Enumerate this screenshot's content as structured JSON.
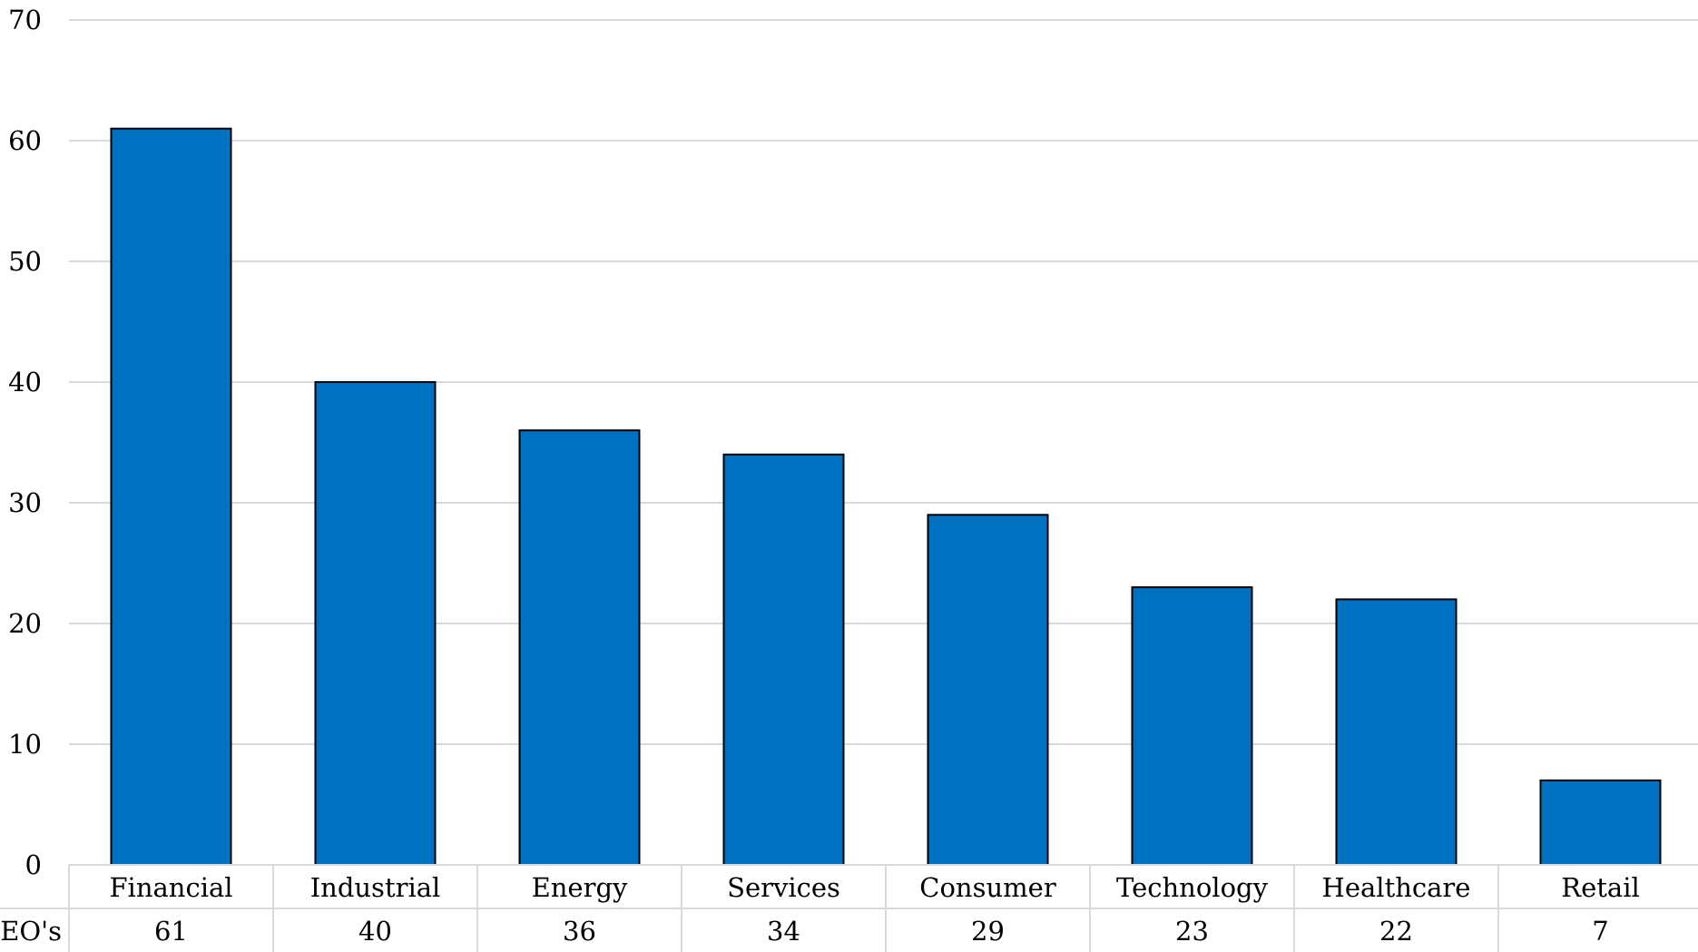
{
  "chart_data": {
    "type": "bar",
    "categories": [
      "Financial",
      "Industrial",
      "Energy",
      "Services",
      "Consumer",
      "Technology",
      "Healthcare",
      "Retail"
    ],
    "series": [
      {
        "name": "CEO's",
        "values": [
          61,
          40,
          36,
          34,
          29,
          23,
          22,
          7
        ]
      }
    ],
    "ylim": [
      0,
      70
    ],
    "yticks": [
      0,
      10,
      20,
      30,
      40,
      50,
      60,
      70
    ],
    "grid": true,
    "data_table": true,
    "bar_color": "#0070c0",
    "title": "",
    "xlabel": "",
    "ylabel": ""
  }
}
